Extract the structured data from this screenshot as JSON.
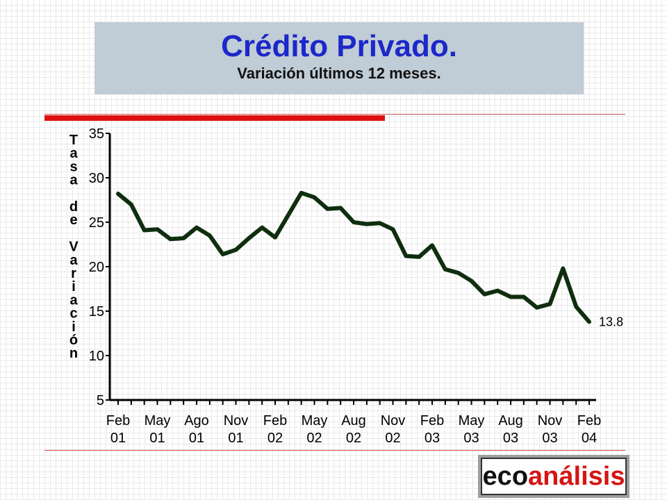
{
  "header": {
    "title": "Crédito Privado.",
    "subtitle": "Variación últimos 12 meses."
  },
  "logo": {
    "part1": "eco",
    "part2": "análisis"
  },
  "colors": {
    "title": "#1c28c8",
    "line": "#0f2e0f",
    "accent": "#dd1111"
  },
  "chart_data": {
    "type": "line",
    "ylabel": "Tasa de Variación",
    "ylim": [
      5,
      35
    ],
    "yticks": [
      5,
      10,
      15,
      20,
      25,
      30,
      35
    ],
    "xtick_labels": [
      {
        "l1": "Feb",
        "l2": "01"
      },
      {
        "l1": "May",
        "l2": "01"
      },
      {
        "l1": "Ago",
        "l2": "01"
      },
      {
        "l1": "Nov",
        "l2": "01"
      },
      {
        "l1": "Feb",
        "l2": "02"
      },
      {
        "l1": "May",
        "l2": "02"
      },
      {
        "l1": "Aug",
        "l2": "02"
      },
      {
        "l1": "Nov",
        "l2": "02"
      },
      {
        "l1": "Feb",
        "l2": "03"
      },
      {
        "l1": "May",
        "l2": "03"
      },
      {
        "l1": "Aug",
        "l2": "03"
      },
      {
        "l1": "Nov",
        "l2": "03"
      },
      {
        "l1": "Feb",
        "l2": "04"
      }
    ],
    "series": [
      {
        "values": [
          28.2,
          27.0,
          24.1,
          24.2,
          23.1,
          23.2,
          24.4,
          23.5,
          21.4,
          21.9,
          23.2,
          24.4,
          23.3,
          25.8,
          28.3,
          27.8,
          26.5,
          26.6,
          25.0,
          24.8,
          24.9,
          24.2,
          21.2,
          21.1,
          22.4,
          19.7,
          19.3,
          18.4,
          16.9,
          17.3,
          16.6,
          16.6,
          15.4,
          15.8,
          19.8,
          15.5,
          13.8
        ]
      }
    ],
    "last_value_label": "13.8",
    "grid": false
  }
}
